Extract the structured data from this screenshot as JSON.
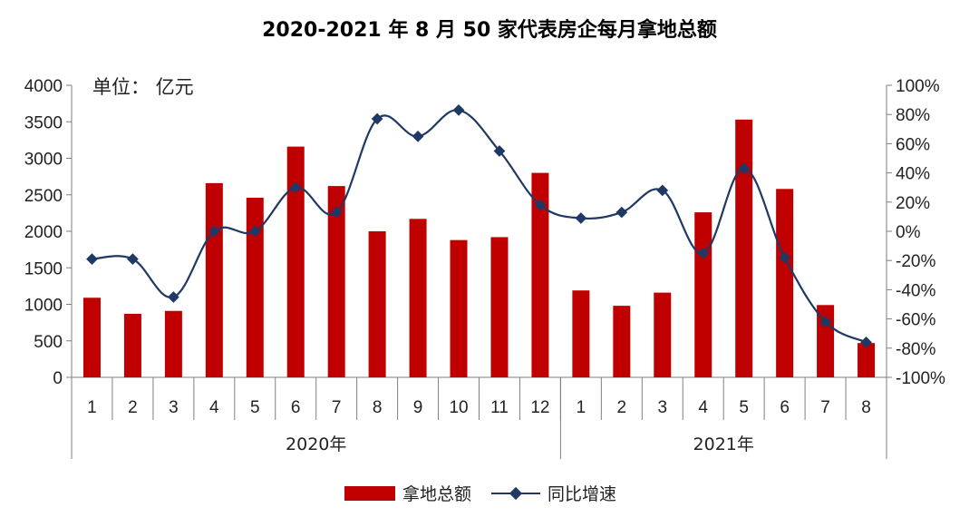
{
  "chart_data": {
    "type": "bar",
    "title": "2020-2021 年 8 月 50 家代表房企每月拿地总额",
    "unit_label": "单位： 亿元",
    "categories": [
      "1",
      "2",
      "3",
      "4",
      "5",
      "6",
      "7",
      "8",
      "9",
      "10",
      "11",
      "12",
      "1",
      "2",
      "3",
      "4",
      "5",
      "6",
      "7",
      "8"
    ],
    "year_groups": [
      {
        "label": "2020年",
        "count": 12
      },
      {
        "label": "2021年",
        "count": 8
      }
    ],
    "y_left": {
      "min": 0,
      "max": 4000,
      "step": 500,
      "ticks": [
        "0",
        "500",
        "1000",
        "1500",
        "2000",
        "2500",
        "3000",
        "3500",
        "4000"
      ]
    },
    "y_right": {
      "min": -100,
      "max": 100,
      "step": 20,
      "ticks": [
        "-100%",
        "-80%",
        "-60%",
        "-40%",
        "-20%",
        "0%",
        "20%",
        "40%",
        "60%",
        "80%",
        "100%"
      ]
    },
    "series": [
      {
        "name": "拿地总额",
        "kind": "bar",
        "axis": "left",
        "color": "#C00000",
        "values": [
          1090,
          870,
          910,
          2660,
          2460,
          3160,
          2620,
          2000,
          2170,
          1880,
          1920,
          2800,
          1190,
          980,
          1160,
          2260,
          3530,
          2580,
          990,
          470
        ]
      },
      {
        "name": "同比增速",
        "kind": "line",
        "axis": "right",
        "color": "#1F3864",
        "values": [
          -19,
          -19,
          -45,
          0,
          0,
          30,
          13,
          77,
          65,
          83,
          55,
          18,
          9,
          13,
          28,
          -15,
          43,
          -18,
          -62,
          -76
        ]
      }
    ],
    "legend_position": "bottom",
    "grid": false
  }
}
